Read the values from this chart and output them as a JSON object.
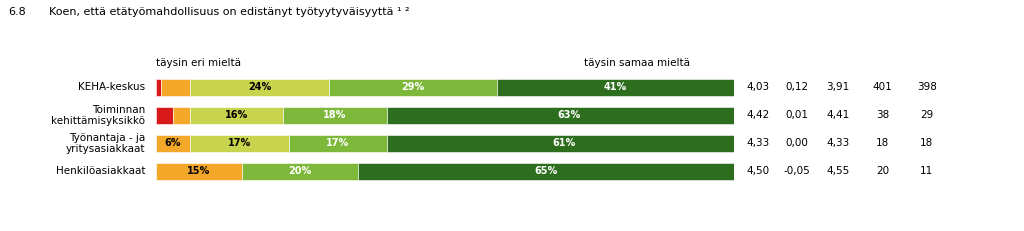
{
  "title_num": "6.8",
  "title_text": "Koen, että etätyömahdollisuus on edistänyt työtyytyväisyyttä ¹ ²",
  "left_label": "täysin eri mieltä",
  "right_label": "täysin samaa mieltä",
  "categories": [
    "KEHA-keskus",
    "Toiminnan\nkehittämisyksikkö",
    "Työnantaja - ja\nyritysasiakkaat",
    "Henkilöasiakkaat"
  ],
  "segments": [
    [
      1,
      5,
      24,
      29,
      41
    ],
    [
      3,
      3,
      16,
      18,
      63
    ],
    [
      0,
      6,
      17,
      17,
      61
    ],
    [
      0,
      15,
      0,
      20,
      65
    ]
  ],
  "segment_labels": [
    [
      "1",
      "",
      "24%",
      "29%",
      "41%"
    ],
    [
      "3%",
      "",
      "16%",
      "18%",
      "63%"
    ],
    [
      "",
      "6%",
      "17%",
      "17%",
      "61%"
    ],
    [
      "",
      "15%",
      "",
      "20%",
      "65%"
    ]
  ],
  "colors": [
    "#d7191c",
    "#f4a82a",
    "#c8d44e",
    "#7db83a",
    "#2d6e1e"
  ],
  "stats": [
    [
      "4,03",
      "0,12",
      "3,91",
      "401",
      "398"
    ],
    [
      "4,42",
      "0,01",
      "4,41",
      "38",
      "29"
    ],
    [
      "4,33",
      "0,00",
      "4,33",
      "18",
      "18"
    ],
    [
      "4,50",
      "-0,05",
      "4,55",
      "20",
      "11"
    ]
  ],
  "bar_height": 0.6,
  "background_color": "#ffffff",
  "text_color": "#000000",
  "font_size": 7.5,
  "title_font_size": 8.0,
  "bar_max_pct": 100
}
